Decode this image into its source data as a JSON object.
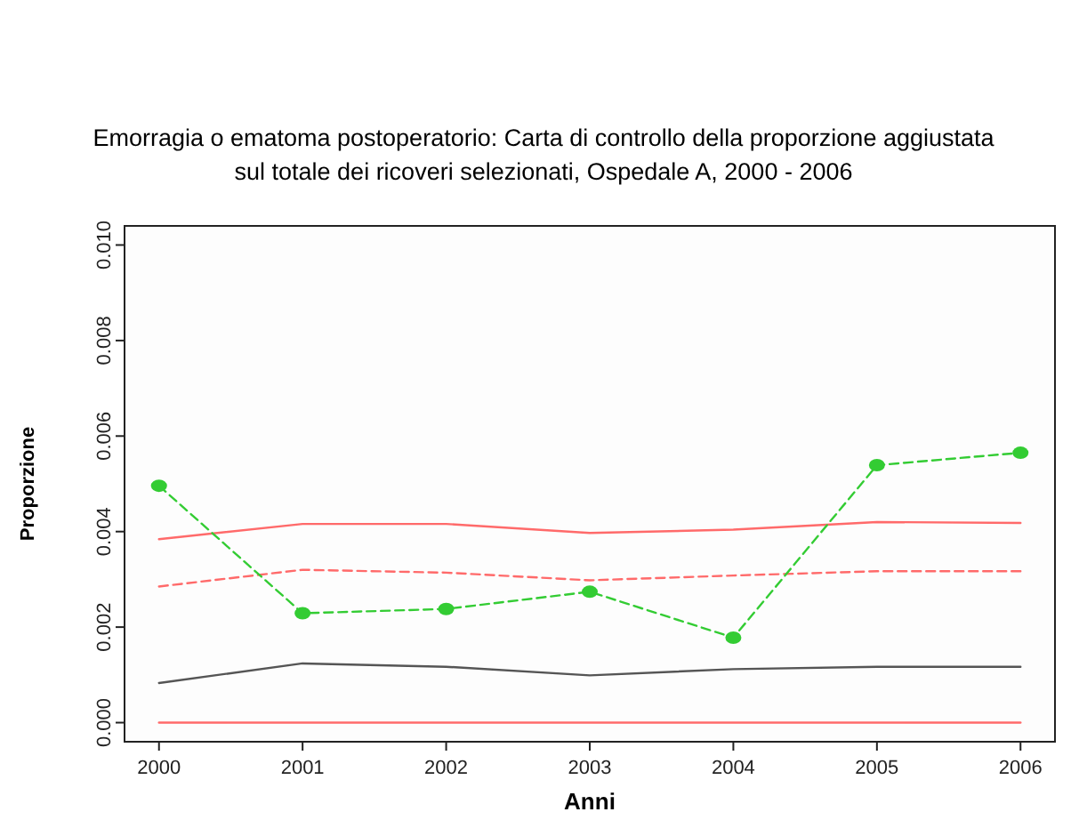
{
  "chart_data": {
    "type": "line",
    "title": "Emorragia o ematoma postoperatorio: Carta di controllo della proporzione aggiustata sul totale dei ricoveri selezionati, Ospedale A, 2000 - 2006",
    "xlabel": "Anni",
    "ylabel": "Proporzione",
    "x": [
      2000,
      2001,
      2002,
      2003,
      2004,
      2005,
      2006
    ],
    "xlim": [
      1999.76,
      2006.24
    ],
    "xticks": [
      2000,
      2001,
      2002,
      2003,
      2004,
      2005,
      2006
    ],
    "ylim": [
      -0.0004,
      0.0104
    ],
    "yticks": [
      {
        "value": 0,
        "label": "0.000"
      },
      {
        "value": 0.002,
        "label": "0.002"
      },
      {
        "value": 0.004,
        "label": "0.004"
      },
      {
        "value": 0.006,
        "label": "0.006"
      },
      {
        "value": 0.008,
        "label": "0.008"
      },
      {
        "value": 0.01,
        "label": "0.010"
      }
    ],
    "grid": false,
    "series": [
      {
        "color": "#ff6a6a",
        "line_style": "solid",
        "marker": "none",
        "values": [
          0,
          0,
          0,
          0,
          0,
          0,
          0
        ]
      },
      {
        "color": "#555555",
        "line_style": "solid",
        "marker": "none",
        "values": [
          0.00083,
          0.00124,
          0.00117,
          0.00099,
          0.00112,
          0.00117,
          0.00117
        ]
      },
      {
        "color": "#ff6a6a",
        "line_style": "dashed",
        "marker": "none",
        "values": [
          0.00285,
          0.0032,
          0.00314,
          0.00298,
          0.00308,
          0.00317,
          0.00317
        ]
      },
      {
        "color": "#ff6a6a",
        "line_style": "solid",
        "marker": "none",
        "values": [
          0.00384,
          0.00416,
          0.00416,
          0.00397,
          0.00404,
          0.0042,
          0.00418
        ]
      },
      {
        "color": "#33cc33",
        "line_style": "dashed",
        "marker": "circle",
        "values": [
          0.00496,
          0.00229,
          0.00238,
          0.00274,
          0.00178,
          0.00539,
          0.00565
        ]
      }
    ]
  }
}
